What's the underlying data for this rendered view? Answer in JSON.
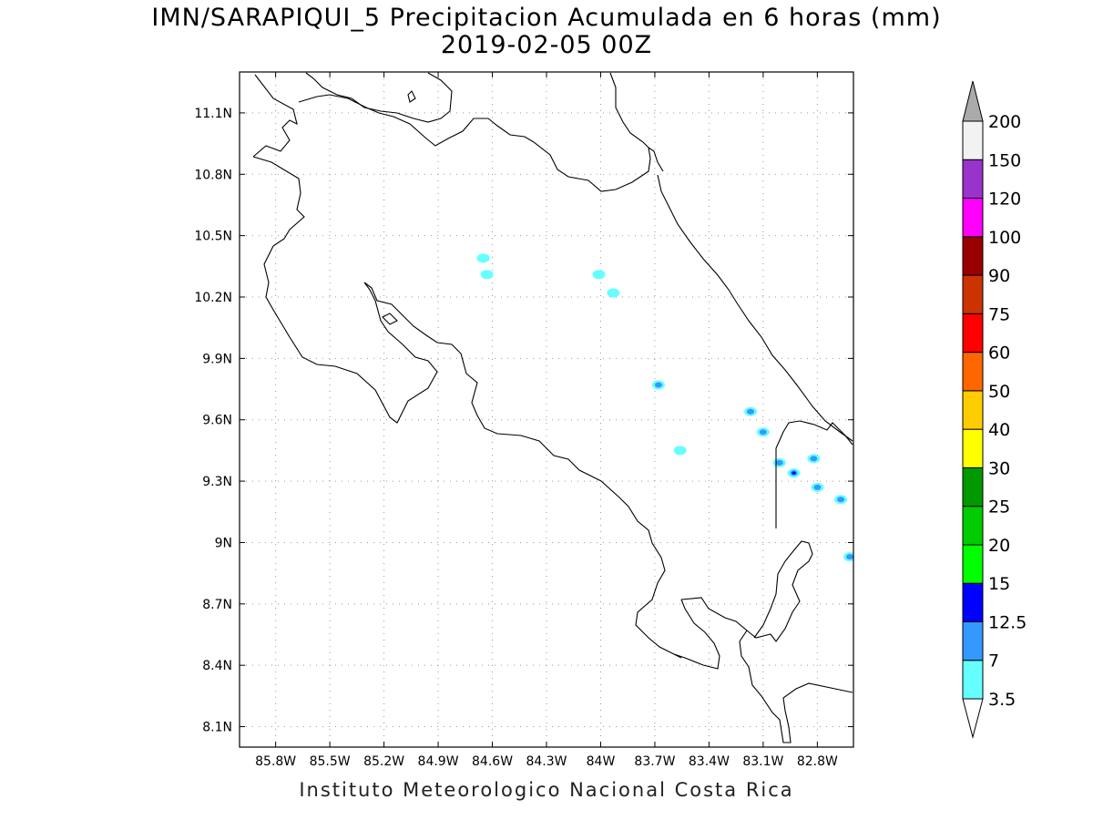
{
  "title_line1": "IMN/SARAPIQUI_5 Precipitacion Acumulada en 6 horas (mm)",
  "title_line2": "2019-02-05 00Z",
  "footer": "Instituto Meteorologico Nacional Costa Rica",
  "map": {
    "lon_range": [
      -86.0,
      -82.6
    ],
    "lat_range": [
      8.0,
      11.3
    ],
    "grid": "dotted",
    "x_ticks": [
      {
        "lon": -85.8,
        "label": "85.8W"
      },
      {
        "lon": -85.5,
        "label": "85.5W"
      },
      {
        "lon": -85.2,
        "label": "85.2W"
      },
      {
        "lon": -84.9,
        "label": "84.9W"
      },
      {
        "lon": -84.6,
        "label": "84.6W"
      },
      {
        "lon": -84.3,
        "label": "84.3W"
      },
      {
        "lon": -84.0,
        "label": "84W"
      },
      {
        "lon": -83.7,
        "label": "83.7W"
      },
      {
        "lon": -83.4,
        "label": "83.4W"
      },
      {
        "lon": -83.1,
        "label": "83.1W"
      },
      {
        "lon": -82.8,
        "label": "82.8W"
      }
    ],
    "y_ticks": [
      {
        "lat": 11.1,
        "label": "11.1N"
      },
      {
        "lat": 10.8,
        "label": "10.8N"
      },
      {
        "lat": 10.5,
        "label": "10.5N"
      },
      {
        "lat": 10.2,
        "label": "10.2N"
      },
      {
        "lat": 9.9,
        "label": "9.9N"
      },
      {
        "lat": 9.6,
        "label": "9.6N"
      },
      {
        "lat": 9.3,
        "label": "9.3N"
      },
      {
        "lat": 9.0,
        "label": "9N"
      },
      {
        "lat": 8.7,
        "label": "8.7N"
      },
      {
        "lat": 8.4,
        "label": "8.4N"
      },
      {
        "lat": 8.1,
        "label": "8.1N"
      }
    ]
  },
  "colorbar": {
    "levels": [
      "3.5",
      "7",
      "12.5",
      "15",
      "20",
      "25",
      "30",
      "40",
      "50",
      "60",
      "75",
      "90",
      "100",
      "120",
      "150",
      "200"
    ],
    "colors": [
      "#ffffff",
      "#66ffff",
      "#3399ff",
      "#0000ff",
      "#00ff00",
      "#00cc00",
      "#009900",
      "#ffff00",
      "#ffcc00",
      "#ff6600",
      "#ff0000",
      "#cc3300",
      "#990000",
      "#ff00ff",
      "#9933cc",
      "#f2f2f2",
      "#aaaaaa"
    ]
  },
  "precip_cells": [
    {
      "lon": -84.65,
      "lat": 10.39,
      "value": 3.5
    },
    {
      "lon": -84.63,
      "lat": 10.31,
      "value": 3.5
    },
    {
      "lon": -84.01,
      "lat": 10.31,
      "value": 3.5
    },
    {
      "lon": -83.93,
      "lat": 10.22,
      "value": 3.5
    },
    {
      "lon": -83.68,
      "lat": 9.77,
      "value": 7
    },
    {
      "lon": -83.56,
      "lat": 9.45,
      "value": 3.5
    },
    {
      "lon": -83.17,
      "lat": 9.64,
      "value": 7
    },
    {
      "lon": -83.1,
      "lat": 9.54,
      "value": 7
    },
    {
      "lon": -83.01,
      "lat": 9.39,
      "value": 7
    },
    {
      "lon": -82.93,
      "lat": 9.34,
      "value": 12.5
    },
    {
      "lon": -82.82,
      "lat": 9.41,
      "value": 7
    },
    {
      "lon": -82.8,
      "lat": 9.27,
      "value": 7
    },
    {
      "lon": -82.67,
      "lat": 9.21,
      "value": 7
    },
    {
      "lon": -82.62,
      "lat": 8.93,
      "value": 7
    }
  ]
}
